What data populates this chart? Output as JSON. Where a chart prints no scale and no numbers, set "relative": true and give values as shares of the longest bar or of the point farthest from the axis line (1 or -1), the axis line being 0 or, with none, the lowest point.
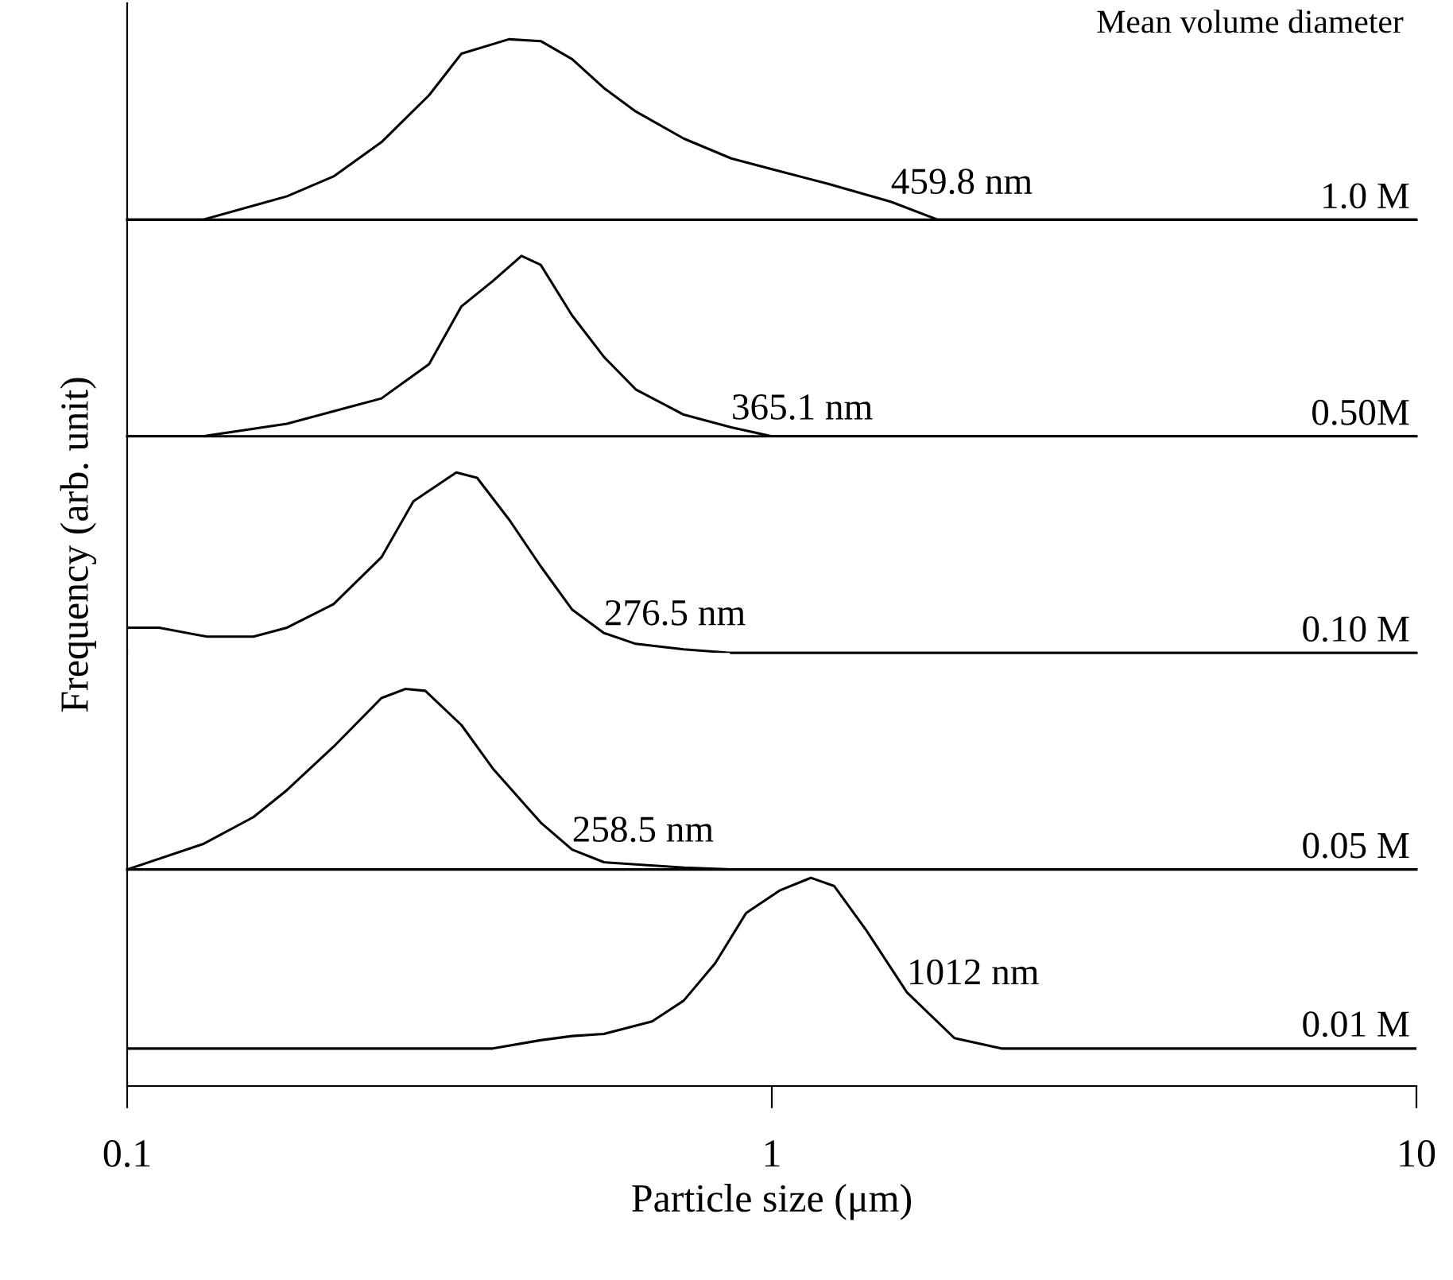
{
  "chart_data": [
    {
      "type": "line",
      "relative": true,
      "log": "x",
      "xlim": [
        0.1,
        10
      ],
      "tick_labels": false,
      "annotations": [
        "Mean volume diameter",
        {
          "text": "459.8 nm",
          "x": 1.53,
          "y": 0.1
        }
      ],
      "series": [
        {
          "name": "1.0 M",
          "color": "#000000",
          "x": [
            0.1,
            0.131,
            0.177,
            0.209,
            0.248,
            0.294,
            0.33,
            0.391,
            0.438,
            0.49,
            0.549,
            0.615,
            0.73,
            0.865,
            1,
            1.22,
            1.53,
            1.81,
            10
          ],
          "values": [
            0,
            0,
            0.13,
            0.24,
            0.43,
            0.69,
            0.92,
            1,
            0.99,
            0.89,
            0.73,
            0.6,
            0.45,
            0.34,
            0.28,
            0.2,
            0.1,
            0,
            0
          ]
        }
      ]
    },
    {
      "type": "line",
      "relative": true,
      "log": "x",
      "xlim": [
        0.1,
        10
      ],
      "tick_labels": false,
      "annotations": [
        {
          "text": "365.1 nm",
          "x": 0.865,
          "y": 0.05
        }
      ],
      "series": [
        {
          "name": "0.50M",
          "color": "#000000",
          "x": [
            0.1,
            0.131,
            0.177,
            0.248,
            0.294,
            0.33,
            0.369,
            0.409,
            0.438,
            0.49,
            0.549,
            0.615,
            0.73,
            0.865,
            1,
            10
          ],
          "values": [
            0,
            0,
            0.07,
            0.21,
            0.4,
            0.72,
            0.86,
            1,
            0.95,
            0.67,
            0.44,
            0.26,
            0.12,
            0.05,
            0,
            0
          ]
        }
      ]
    },
    {
      "type": "line",
      "relative": true,
      "log": "x",
      "xlim": [
        0.1,
        10
      ],
      "tick_labels": false,
      "ylabel": "Frequency (arb. unit)",
      "annotations": [
        {
          "text": "276.5 nm",
          "x": 0.549,
          "y": 0.11
        }
      ],
      "series": [
        {
          "name": "0.10 M",
          "color": "#000000",
          "x": [
            0.1,
            0.112,
            0.133,
            0.157,
            0.177,
            0.209,
            0.248,
            0.278,
            0.324,
            0.349,
            0.391,
            0.438,
            0.49,
            0.549,
            0.615,
            0.73,
            0.865,
            10
          ],
          "values": [
            0.14,
            0.14,
            0.09,
            0.09,
            0.14,
            0.27,
            0.53,
            0.84,
            1,
            0.97,
            0.74,
            0.48,
            0.24,
            0.11,
            0.05,
            0.02,
            0,
            0
          ]
        }
      ]
    },
    {
      "type": "line",
      "relative": true,
      "log": "x",
      "xlim": [
        0.1,
        10
      ],
      "tick_labels": false,
      "annotations": [
        {
          "text": "258.5 nm",
          "x": 0.49,
          "y": 0.11
        }
      ],
      "series": [
        {
          "name": "0.05 M",
          "color": "#000000",
          "x": [
            0.1,
            0.131,
            0.157,
            0.177,
            0.209,
            0.248,
            0.27,
            0.29,
            0.33,
            0.369,
            0.438,
            0.49,
            0.549,
            0.73,
            0.865,
            10
          ],
          "values": [
            0,
            0.14,
            0.29,
            0.44,
            0.68,
            0.95,
            1,
            0.99,
            0.8,
            0.56,
            0.26,
            0.11,
            0.04,
            0.01,
            0,
            0
          ]
        }
      ]
    },
    {
      "type": "line",
      "relative": true,
      "log": "x",
      "xlim": [
        0.1,
        10
      ],
      "xticks": [
        0.1,
        1,
        10
      ],
      "tick_labels": "x",
      "xlabel": "Particle size (μm)",
      "annotations": [
        {
          "text": "1012 nm",
          "x": 1.62,
          "y": 0.45
        }
      ],
      "series": [
        {
          "name": "0.01 M",
          "color": "#000000",
          "x": [
            0.1,
            0.369,
            0.438,
            0.49,
            0.549,
            0.652,
            0.73,
            0.817,
            0.912,
            1.03,
            1.15,
            1.25,
            1.4,
            1.62,
            1.92,
            2.27,
            10
          ],
          "values": [
            0.18,
            0.18,
            0.22,
            0.24,
            0.25,
            0.31,
            0.41,
            0.59,
            0.83,
            0.94,
            1,
            0.96,
            0.75,
            0.45,
            0.23,
            0.18,
            0.18
          ]
        }
      ]
    }
  ]
}
